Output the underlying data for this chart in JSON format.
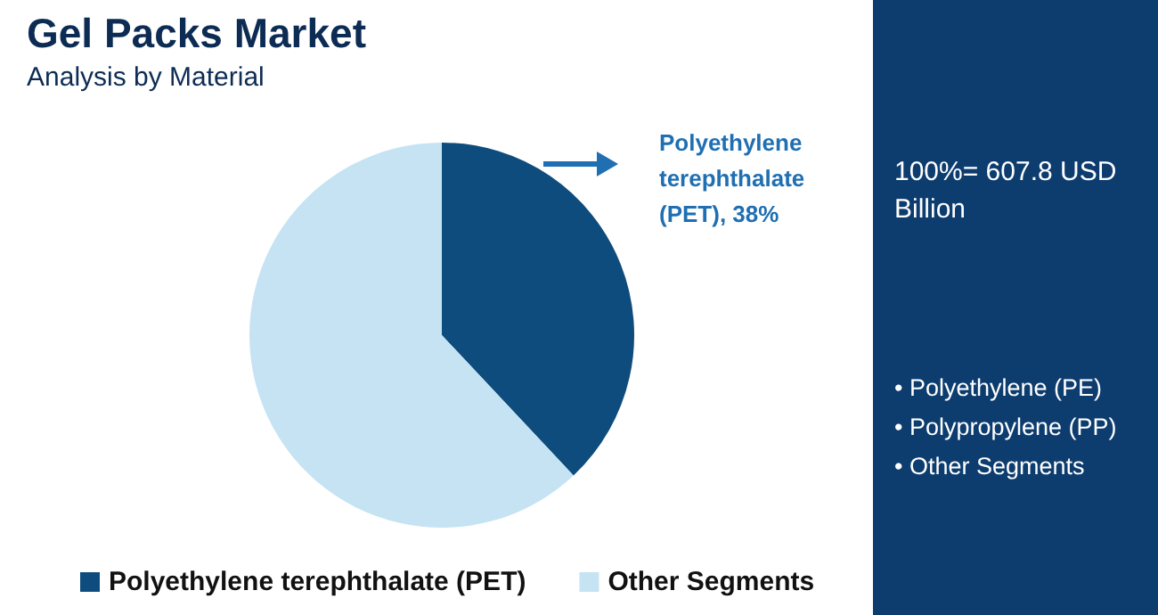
{
  "chart_data": {
    "type": "pie",
    "title": "Gel Packs Market",
    "subtitle": "Analysis by Material",
    "categories": [
      "Polyethylene terephthalate (PET)",
      "Other Segments"
    ],
    "values": [
      38,
      62
    ],
    "colors": [
      "#0e4c7d",
      "#c5e3f3"
    ],
    "value_labels": [
      "Polyethylene terephthalate (PET), 38%",
      null
    ],
    "legend": "bottom",
    "annotations": [
      "100%= 607.8 USD Billion",
      "• Polyethylene (PE)",
      "• Polypropylene (PP)",
      "• Other Segments"
    ]
  }
}
